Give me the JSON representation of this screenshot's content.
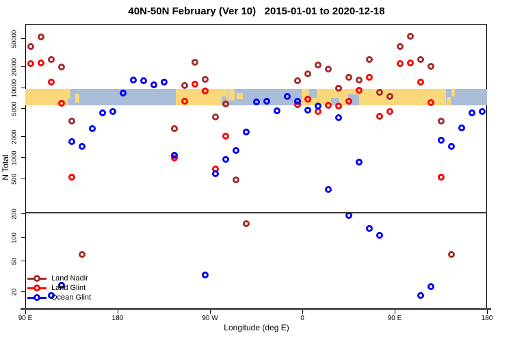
{
  "title": "40N-50N February (Ver 10)   2015-01-01 to 2020-12-18",
  "y_axis": {
    "label": "N Total",
    "upper_ticks": [
      50000,
      20000,
      10000,
      5000,
      2000,
      1000,
      500
    ],
    "lower_ticks": [
      200,
      100,
      50,
      20
    ]
  },
  "x_axis": {
    "label": "Longitude (deg E)",
    "ticks": [
      {
        "pos": 90,
        "label": "90 E"
      },
      {
        "pos": 180,
        "label": "180"
      },
      {
        "pos": 270,
        "label": "90 W"
      },
      {
        "pos": 360,
        "label": "0"
      },
      {
        "pos": 450,
        "label": "90 E"
      },
      {
        "pos": 540,
        "label": "180"
      }
    ]
  },
  "legend": {
    "items": [
      {
        "label": "Land Nadir",
        "color": "#A52A2A"
      },
      {
        "label": "Land Glint",
        "color": "#FF0000"
      },
      {
        "label": "Ocean Glint",
        "color": "#0000FF"
      }
    ]
  },
  "colors": {
    "land_nadir": "#A52A2A",
    "land_glint": "#FF0000",
    "ocean_glint": "#0000FF",
    "band_land": "#FBD77B",
    "band_ocean": "#A9BDD9",
    "break_line": "#383838",
    "bottom_axis": "#4d4d4d"
  },
  "chart_data": {
    "type": "scatter",
    "title": "40N-50N February (Ver 10)   2015-01-01 to 2020-12-18",
    "xlabel": "Longitude (deg E)",
    "ylabel": "N Total",
    "x_axis_convention": "longitude plotted 90E eastward: 90E,180,90W,0,90E,180 (internal coords 90..540 deg)",
    "y_scale": "log10, split axis: upper panel ~200..80000, lower panel ~12..220",
    "x_bin_width_deg": 10,
    "series": [
      {
        "name": "Land Nadir",
        "color": "#A52A2A",
        "points": [
          [
            95,
            38000
          ],
          [
            105,
            52000
          ],
          [
            115,
            25000
          ],
          [
            125,
            19500
          ],
          [
            135,
            3300
          ],
          [
            145,
            60
          ],
          [
            235,
            2550
          ],
          [
            245,
            10600
          ],
          [
            255,
            23000
          ],
          [
            265,
            13000
          ],
          [
            275,
            3800
          ],
          [
            285,
            5800
          ],
          [
            295,
            480
          ],
          [
            305,
            150
          ],
          [
            355,
            12300
          ],
          [
            365,
            15700
          ],
          [
            375,
            21000
          ],
          [
            385,
            18200
          ],
          [
            395,
            9600
          ],
          [
            405,
            14000
          ],
          [
            415,
            12700
          ],
          [
            425,
            25000
          ],
          [
            435,
            8500
          ],
          [
            445,
            7400
          ],
          [
            455,
            38000
          ],
          [
            465,
            53000
          ],
          [
            475,
            25000
          ],
          [
            485,
            19800
          ],
          [
            495,
            3300
          ],
          [
            505,
            60
          ]
        ]
      },
      {
        "name": "Land Glint",
        "color": "#FF0000",
        "points": [
          [
            95,
            22000
          ],
          [
            105,
            22500
          ],
          [
            115,
            12000
          ],
          [
            125,
            5900
          ],
          [
            135,
            520
          ],
          [
            235,
            990
          ],
          [
            245,
            6400
          ],
          [
            255,
            11000
          ],
          [
            265,
            8900
          ],
          [
            275,
            690
          ],
          [
            285,
            2000
          ],
          [
            355,
            5700
          ],
          [
            365,
            6800
          ],
          [
            375,
            4500
          ],
          [
            385,
            5500
          ],
          [
            395,
            5400
          ],
          [
            405,
            6300
          ],
          [
            415,
            9000
          ],
          [
            425,
            14000
          ],
          [
            435,
            3900
          ],
          [
            445,
            4550
          ],
          [
            455,
            22000
          ],
          [
            465,
            22400
          ],
          [
            475,
            12000
          ],
          [
            485,
            6000
          ],
          [
            495,
            520
          ]
        ]
      },
      {
        "name": "Ocean Glint",
        "color": "#0000FF",
        "points": [
          [
            115,
            18
          ],
          [
            125,
            24
          ],
          [
            135,
            1700
          ],
          [
            145,
            1450
          ],
          [
            155,
            2600
          ],
          [
            165,
            4300
          ],
          [
            175,
            4550
          ],
          [
            185,
            8200
          ],
          [
            195,
            12600
          ],
          [
            205,
            12300
          ],
          [
            215,
            10900
          ],
          [
            225,
            12000
          ],
          [
            235,
            1070
          ],
          [
            265,
            33
          ],
          [
            275,
            590
          ],
          [
            285,
            930
          ],
          [
            295,
            1250
          ],
          [
            305,
            2290
          ],
          [
            315,
            6200
          ],
          [
            325,
            6300
          ],
          [
            335,
            4600
          ],
          [
            345,
            7400
          ],
          [
            355,
            6400
          ],
          [
            365,
            4700
          ],
          [
            375,
            5400
          ],
          [
            385,
            350
          ],
          [
            395,
            3700
          ],
          [
            405,
            190
          ],
          [
            415,
            850
          ],
          [
            425,
            130
          ],
          [
            435,
            105
          ],
          [
            475,
            18
          ],
          [
            485,
            23
          ],
          [
            495,
            1750
          ],
          [
            505,
            1450
          ],
          [
            515,
            2650
          ],
          [
            525,
            4300
          ],
          [
            535,
            4550
          ]
        ]
      }
    ],
    "map_band": {
      "description": "land/ocean mask strip along the 40N-50N latitude belt, drawn across values ~5500-9500",
      "base_segments": [
        {
          "from": 90,
          "to": 131,
          "type": "land"
        },
        {
          "from": 131,
          "to": 236.5,
          "type": "ocean"
        },
        {
          "from": 236.5,
          "to": 287,
          "type": "land"
        },
        {
          "from": 287,
          "to": 359,
          "type": "ocean"
        },
        {
          "from": 359,
          "to": 500,
          "type": "land"
        },
        {
          "from": 500,
          "to": 540,
          "type": "ocean"
        }
      ],
      "patches": [
        {
          "from": 131,
          "to": 134,
          "type": "land",
          "top": 0,
          "bottom": 0.6
        },
        {
          "from": 138.5,
          "to": 142.5,
          "type": "land",
          "top": 0.3,
          "bottom": 0.85
        },
        {
          "from": 281,
          "to": 286,
          "type": "ocean",
          "top": 0.45,
          "bottom": 1
        },
        {
          "from": 288,
          "to": 294,
          "type": "land",
          "top": 0,
          "bottom": 0.7
        },
        {
          "from": 296,
          "to": 302,
          "type": "land",
          "top": 0.25,
          "bottom": 0.65
        },
        {
          "from": 366.5,
          "to": 374,
          "type": "ocean",
          "top": 0,
          "bottom": 0.55
        },
        {
          "from": 388,
          "to": 396,
          "type": "ocean",
          "top": 0.55,
          "bottom": 1
        },
        {
          "from": 404.5,
          "to": 415,
          "type": "ocean",
          "top": 0.35,
          "bottom": 1
        },
        {
          "from": 500.5,
          "to": 504.5,
          "type": "land",
          "top": 0.5,
          "bottom": 1
        },
        {
          "from": 505.5,
          "to": 508.5,
          "type": "land",
          "top": 0,
          "bottom": 0.45
        }
      ]
    }
  }
}
